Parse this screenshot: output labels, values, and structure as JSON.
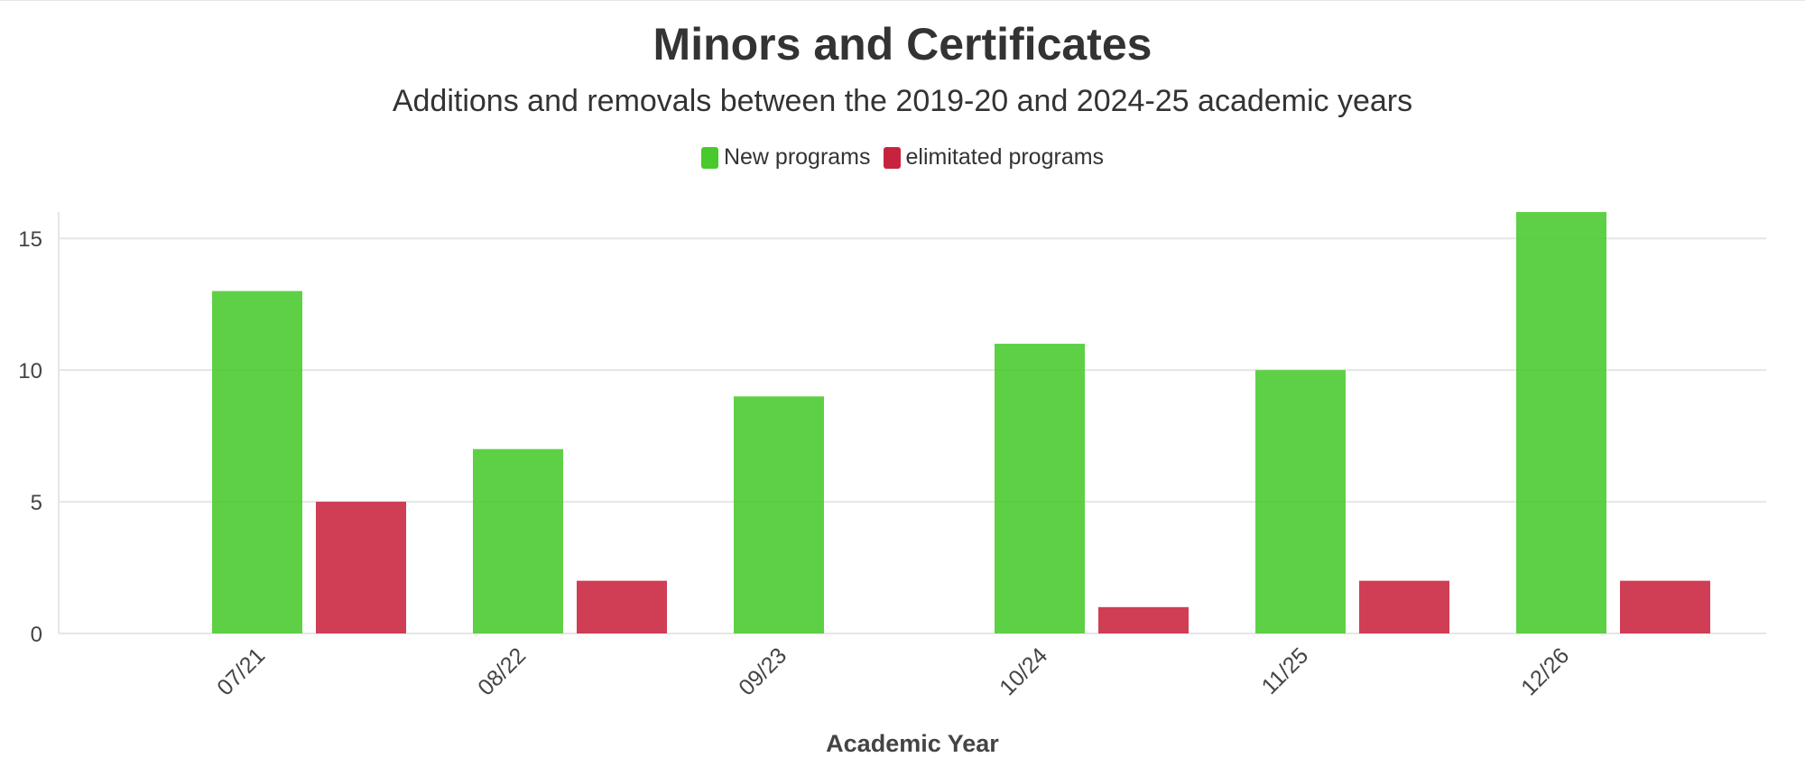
{
  "chart_data": {
    "type": "bar",
    "title": "Minors and Certificates",
    "subtitle": "Additions and removals between the 2019-20 and 2024-25 academic years",
    "xlabel": "Academic Year",
    "ylabel": "",
    "categories": [
      "07/21",
      "08/22",
      "09/23",
      "10/24",
      "11/25",
      "12/26"
    ],
    "series": [
      {
        "name": "New programs",
        "values": [
          13,
          7,
          9,
          11,
          10,
          16
        ],
        "color": "#48c92c"
      },
      {
        "name": "elimitated programs",
        "values": [
          5,
          2,
          0,
          1,
          2,
          2
        ],
        "color": "#c8233e"
      }
    ],
    "ylim": [
      0,
      16
    ],
    "yticks": [
      0,
      5,
      10,
      15
    ],
    "grid": true,
    "legend_position": "top-center"
  }
}
